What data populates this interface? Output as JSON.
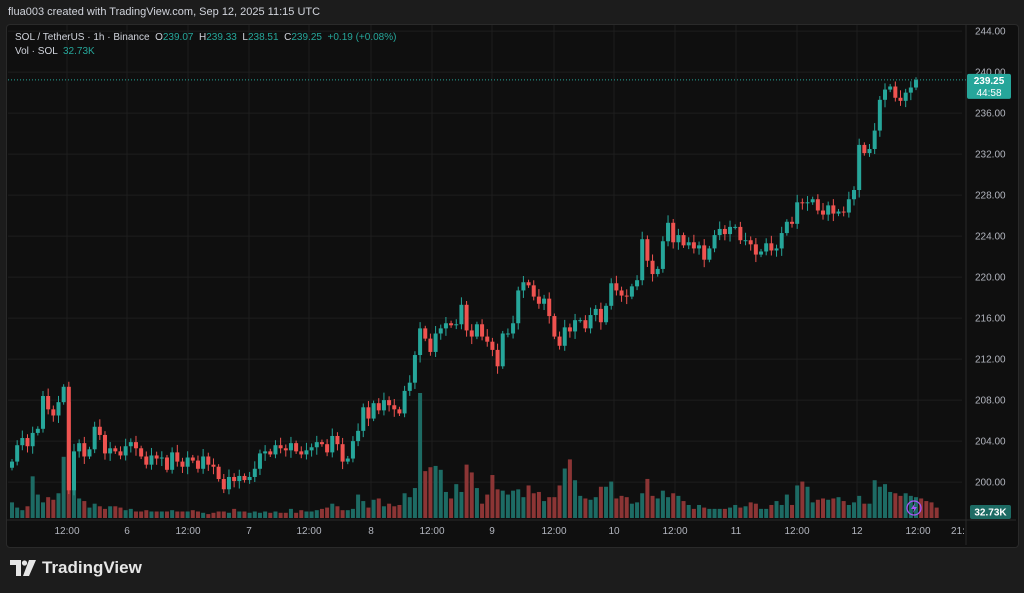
{
  "header": {
    "created_line": "flua003 created with TradingView.com, Sep 12, 2025 11:15 UTC"
  },
  "legend": {
    "symbol": "SOL / TetherUS · 1h · Binance",
    "o_label": "O",
    "o_value": "239.07",
    "h_label": "H",
    "h_value": "239.33",
    "l_label": "L",
    "l_value": "238.51",
    "c_label": "C",
    "c_value": "239.25",
    "change": "+0.19 (+0.08%)",
    "vol_label": "Vol · SOL",
    "vol_value": "32.73K"
  },
  "price_badge": {
    "price": "239.25",
    "countdown": "44:58"
  },
  "volume_badge": "32.73K",
  "brand": {
    "name": "TradingView"
  },
  "colors": {
    "up": "#26a69a",
    "down": "#ef5350",
    "up_vol": "#1d6b64",
    "down_vol": "#8c3535",
    "grid": "#1e1e1e",
    "bg": "#0f0f0f"
  },
  "chart_data": {
    "type": "candlestick",
    "title": "SOL / TetherUS · 1h · Binance",
    "y_axis": {
      "ticks": [
        "244.00",
        "240.00",
        "236.00",
        "232.00",
        "228.00",
        "224.00",
        "220.00",
        "216.00",
        "212.00",
        "208.00",
        "204.00",
        "200.00"
      ],
      "range": [
        196.4,
        244.6
      ]
    },
    "x_axis": {
      "ticks": [
        "12:00",
        "6",
        "12:00",
        "7",
        "12:00",
        "8",
        "12:00",
        "9",
        "12:00",
        "10",
        "12:00",
        "11",
        "12:00",
        "12",
        "12:00",
        "21:"
      ]
    },
    "last_price": 239.25,
    "series": [
      {
        "name": "price",
        "close": [
          202.0,
          203.6,
          204.3,
          203.5,
          204.8,
          205.2,
          208.4,
          207.1,
          206.5,
          207.8,
          209.3,
          199.2,
          203.0,
          203.8,
          202.5,
          203.2,
          205.4,
          204.6,
          202.8,
          203.3,
          203.0,
          202.6,
          203.5,
          203.9,
          203.3,
          202.5,
          201.7,
          202.6,
          202.3,
          202.4,
          201.2,
          202.9,
          202.0,
          201.5,
          202.4,
          202.1,
          201.3,
          202.5,
          201.7,
          201.5,
          200.3,
          199.3,
          200.5,
          200.1,
          200.6,
          200.2,
          200.5,
          201.3,
          202.8,
          203.0,
          202.7,
          203.6,
          203.3,
          203.1,
          203.8,
          203.0,
          202.7,
          203.1,
          203.4,
          203.9,
          203.7,
          202.9,
          204.5,
          203.7,
          202.0,
          202.3,
          204.0,
          205.0,
          207.3,
          206.2,
          207.7,
          207.0,
          208.0,
          207.5,
          207.1,
          206.7,
          208.9,
          209.7,
          212.4,
          215.0,
          214.0,
          212.7,
          214.5,
          215.0,
          215.5,
          215.3,
          215.4,
          217.3,
          214.8,
          214.2,
          215.4,
          214.2,
          213.7,
          212.9,
          211.3,
          214.5,
          214.5,
          215.5,
          218.7,
          219.5,
          219.2,
          218.1,
          217.4,
          217.9,
          216.2,
          214.2,
          213.3,
          215.1,
          214.7,
          215.8,
          215.8,
          215.0,
          216.3,
          216.9,
          215.6,
          217.2,
          219.4,
          218.7,
          218.2,
          218.1,
          219.1,
          219.7,
          223.7,
          221.6,
          220.3,
          220.8,
          223.5,
          225.3,
          223.4,
          224.1,
          223.1,
          223.4,
          222.8,
          223.1,
          221.7,
          222.8,
          224.1,
          224.7,
          224.2,
          224.9,
          224.9,
          223.6,
          223.6,
          223.2,
          222.2,
          222.5,
          223.3,
          222.6,
          222.8,
          224.3,
          225.4,
          225.2,
          227.3,
          227.2,
          227.3,
          227.6,
          226.5,
          226.1,
          227.0,
          226.2,
          226.4,
          226.3,
          227.6,
          228.5,
          232.9,
          232.1,
          232.5,
          234.3,
          237.3,
          238.3,
          238.6,
          237.5,
          237.2,
          238.0,
          238.5,
          239.25
        ]
      },
      {
        "name": "Vol · SOL",
        "volume": [
          1.2,
          0.8,
          0.6,
          0.9,
          3.2,
          1.8,
          1.2,
          1.6,
          1.4,
          1.9,
          4.7,
          8.9,
          2.3,
          1.5,
          1.3,
          0.8,
          1.1,
          0.9,
          0.7,
          0.9,
          0.9,
          0.8,
          0.6,
          0.7,
          0.5,
          0.5,
          0.6,
          0.5,
          0.5,
          0.5,
          0.5,
          0.6,
          0.5,
          0.5,
          0.5,
          0.6,
          0.5,
          0.4,
          0.3,
          0.4,
          0.5,
          0.5,
          0.4,
          0.7,
          0.5,
          0.5,
          0.4,
          0.5,
          0.4,
          0.5,
          0.4,
          0.5,
          0.4,
          0.4,
          0.7,
          0.4,
          0.6,
          0.5,
          0.5,
          0.6,
          0.7,
          0.8,
          1.1,
          0.9,
          0.6,
          0.6,
          0.7,
          1.8,
          1.3,
          0.8,
          1.4,
          1.5,
          0.9,
          1.1,
          0.9,
          1.0,
          1.9,
          1.6,
          2.3,
          9.6,
          3.6,
          3.9,
          4.0,
          3.7,
          2.0,
          1.5,
          2.6,
          2.0,
          4.1,
          3.5,
          2.3,
          1.1,
          1.8,
          3.3,
          2.2,
          2.1,
          1.8,
          2.1,
          2.2,
          1.6,
          2.5,
          1.9,
          2.0,
          1.3,
          1.6,
          1.6,
          2.5,
          3.8,
          4.5,
          2.9,
          1.7,
          1.5,
          1.4,
          1.6,
          2.4,
          2.4,
          2.8,
          1.5,
          1.7,
          1.6,
          1.1,
          1.2,
          1.9,
          3.0,
          1.7,
          1.5,
          2.1,
          1.6,
          1.9,
          1.7,
          1.3,
          1.0,
          0.7,
          1.0,
          0.8,
          0.7,
          0.7,
          0.7,
          0.7,
          0.8,
          1.0,
          0.8,
          0.9,
          1.2,
          1.1,
          0.7,
          0.7,
          1.0,
          1.3,
          1.0,
          1.8,
          1.0,
          2.5,
          2.8,
          2.4,
          1.2,
          1.4,
          1.5,
          1.4,
          1.5,
          1.6,
          1.3,
          1.0,
          1.2,
          1.7,
          1.1,
          1.1,
          2.9,
          2.4,
          2.6,
          2.0,
          1.9,
          1.7,
          1.9,
          1.7,
          1.6,
          1.5,
          1.3,
          1.2,
          0.8
        ]
      }
    ]
  }
}
